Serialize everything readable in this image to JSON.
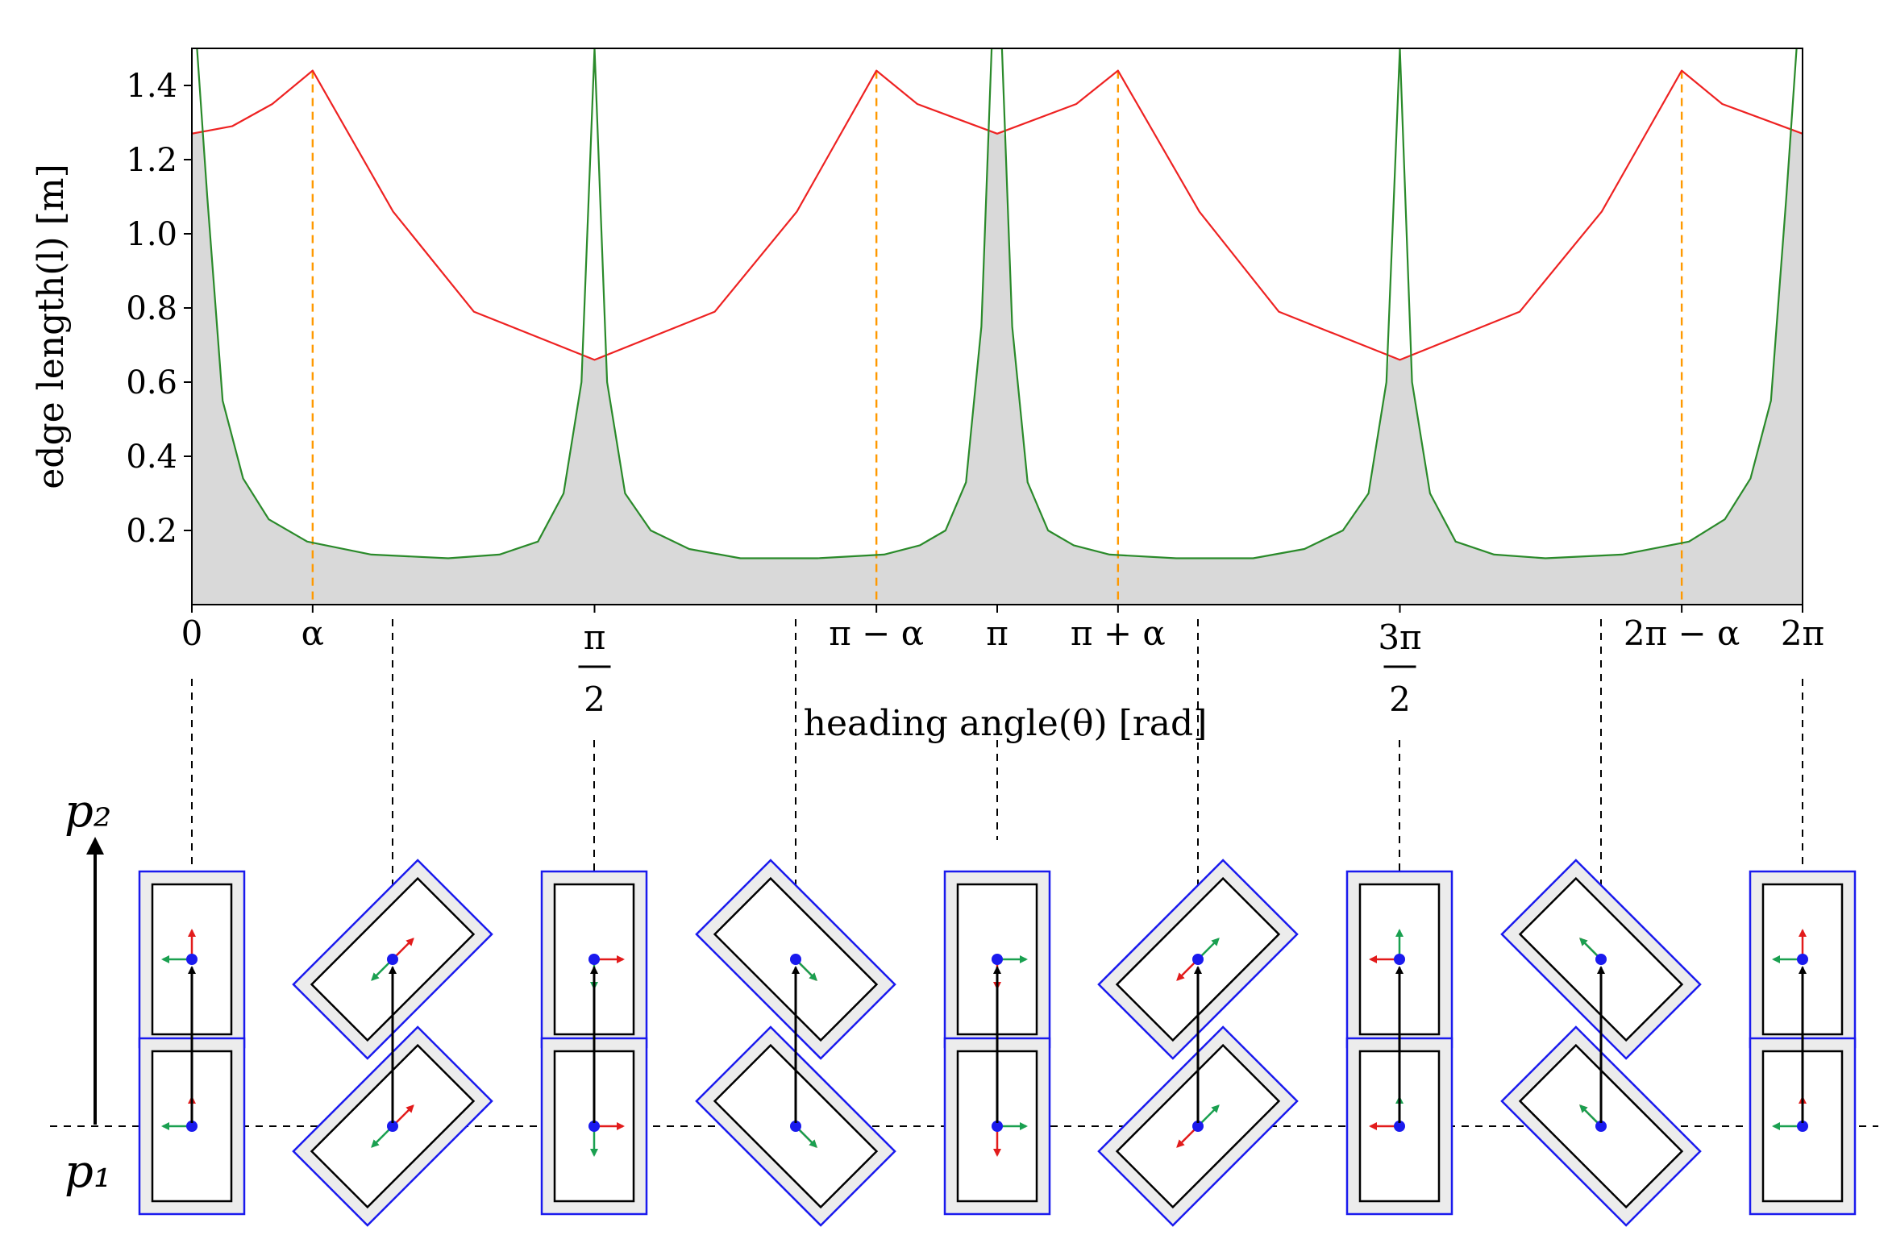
{
  "chart_data": {
    "type": "line",
    "title": "",
    "xlabel": "heading angle(θ) [rad]",
    "ylabel": "edge length(l) [m]",
    "xlim": [
      0,
      6.2832
    ],
    "ylim": [
      0,
      1.5
    ],
    "yticks": [
      "0.2",
      "0.4",
      "0.6",
      "0.8",
      "1.0",
      "1.2",
      "1.4"
    ],
    "ytick_values": [
      0.2,
      0.4,
      0.6,
      0.8,
      1.0,
      1.2,
      1.4
    ],
    "xticks": [
      {
        "label": "0",
        "value": 0
      },
      {
        "label": "α",
        "value": 0.4712
      },
      {
        "label": "π/2",
        "value": 1.5708
      },
      {
        "label": "π − α",
        "value": 2.6704
      },
      {
        "label": "π",
        "value": 3.1416
      },
      {
        "label": "π + α",
        "value": 3.6128
      },
      {
        "label": "3π/2",
        "value": 4.7124
      },
      {
        "label": "2π − α",
        "value": 5.8119
      },
      {
        "label": "2π",
        "value": 6.2832
      }
    ],
    "grid": false,
    "series": [
      {
        "color": "#ee2222",
        "x": [
          0,
          0.157,
          0.314,
          0.4712,
          0.785,
          1.1,
          1.5708,
          2.04,
          2.36,
          2.6704,
          2.83,
          3.1416,
          3.45,
          3.6128,
          3.93,
          4.24,
          4.7124,
          5.18,
          5.5,
          5.8119,
          5.97,
          6.2832
        ],
        "y": [
          1.27,
          1.29,
          1.35,
          1.44,
          1.06,
          0.79,
          0.66,
          0.79,
          1.06,
          1.44,
          1.35,
          1.27,
          1.35,
          1.44,
          1.06,
          0.79,
          0.66,
          0.79,
          1.06,
          1.44,
          1.35,
          1.27
        ]
      },
      {
        "color": "#2a8a2a",
        "x": [
          0.02,
          0.06,
          0.12,
          0.2,
          0.3,
          0.45,
          0.7,
          1.0,
          1.2,
          1.35,
          1.45,
          1.52,
          1.5708,
          1.62,
          1.69,
          1.79,
          1.94,
          2.14,
          2.44,
          2.7,
          2.84,
          2.94,
          3.02,
          3.08,
          3.12,
          3.1416,
          3.16,
          3.2,
          3.26,
          3.34,
          3.44,
          3.58,
          3.84,
          4.14,
          4.34,
          4.49,
          4.59,
          4.66,
          4.7124,
          4.76,
          4.83,
          4.93,
          5.08,
          5.28,
          5.58,
          5.84,
          5.98,
          6.08,
          6.16,
          6.22,
          6.26
        ],
        "y": [
          1.5,
          1.1,
          0.55,
          0.34,
          0.23,
          0.17,
          0.135,
          0.125,
          0.135,
          0.17,
          0.3,
          0.6,
          1.5,
          0.6,
          0.3,
          0.2,
          0.15,
          0.125,
          0.125,
          0.135,
          0.16,
          0.2,
          0.33,
          0.75,
          1.5,
          1.5,
          1.5,
          0.75,
          0.33,
          0.2,
          0.16,
          0.135,
          0.125,
          0.125,
          0.15,
          0.2,
          0.3,
          0.6,
          1.5,
          0.6,
          0.3,
          0.17,
          0.135,
          0.125,
          0.135,
          0.17,
          0.23,
          0.34,
          0.55,
          1.1,
          1.5
        ]
      }
    ],
    "shaded_region": "gray area under the lower of the two curves",
    "vlines": [
      0.4712,
      2.6704,
      3.6128,
      5.8119
    ],
    "vline_color": "#ff9900",
    "diagram": {
      "top_label": "p₂",
      "bottom_label": "p₁",
      "headings": [
        0,
        0.785,
        1.5708,
        2.356,
        3.1416,
        3.927,
        4.7124,
        5.498,
        6.2832
      ]
    }
  }
}
